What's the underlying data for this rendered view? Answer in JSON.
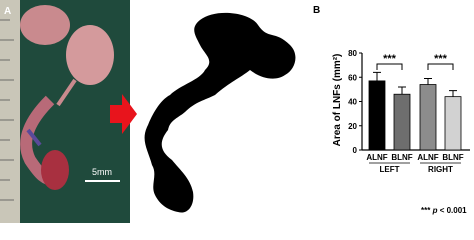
{
  "panel_a": {
    "label": "A",
    "scale_bar": "5mm"
  },
  "chart_data": {
    "type": "bar",
    "panel_label": "B",
    "ylabel": "Area of LNFs (mm²)",
    "categories": [
      "ALNF",
      "BLNF",
      "ALNF",
      "BLNF"
    ],
    "groups": [
      "LEFT",
      "RIGHT"
    ],
    "values": [
      57,
      46,
      54,
      44
    ],
    "errors": [
      7,
      6,
      5,
      5
    ],
    "colors": [
      "#000000",
      "#6e6e6e",
      "#8c8c8c",
      "#d2d2d2"
    ],
    "ylim": [
      0,
      80
    ],
    "yticks": [
      0,
      20,
      40,
      60,
      80
    ],
    "significance": [
      "***",
      "***"
    ],
    "footnote": {
      "stars": "***",
      "p": "p",
      "rest": "< 0.001"
    }
  }
}
